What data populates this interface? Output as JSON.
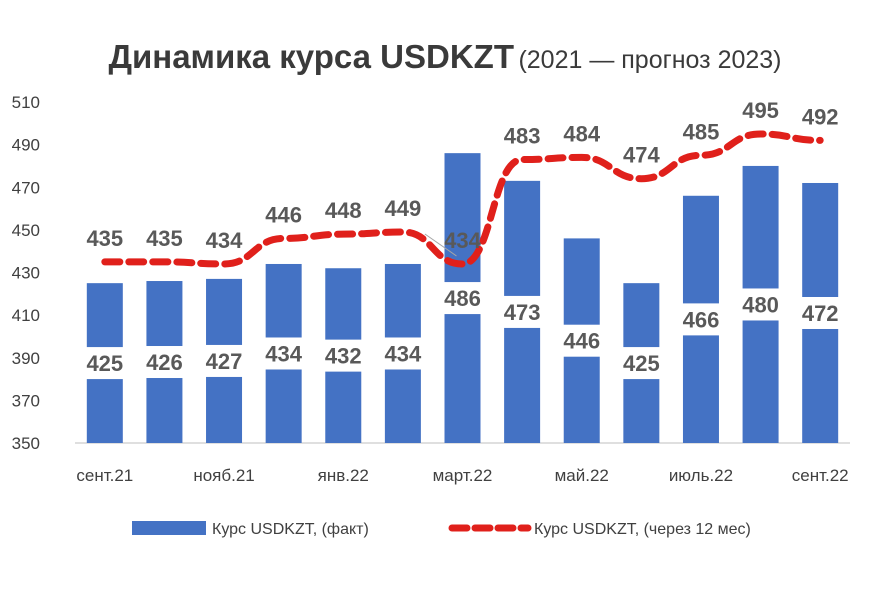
{
  "chart_data": {
    "type": "bar",
    "title": "Динамика курса USDKZT",
    "subtitle": "(2021 — прогноз 2023)",
    "categories": [
      "сент.21",
      "",
      "нояб.21",
      "",
      "янв.22",
      "",
      "март.22",
      "",
      "май.22",
      "",
      "июль.22",
      "",
      "сент.22"
    ],
    "ylim": [
      350,
      510
    ],
    "yticks": [
      350,
      370,
      390,
      410,
      430,
      450,
      470,
      490,
      510
    ],
    "series": [
      {
        "name": "Курс USDKZT, (факт)",
        "type": "bar",
        "color": "#4472C4",
        "values": [
          425,
          426,
          427,
          434,
          432,
          434,
          486,
          473,
          446,
          425,
          466,
          480,
          472
        ]
      },
      {
        "name": "Курс USDKZT, (через 12 мес)",
        "type": "line",
        "style": "dashed",
        "color": "#E0201B",
        "values": [
          435,
          435,
          434,
          446,
          448,
          449,
          434,
          483,
          484,
          474,
          485,
          495,
          492
        ]
      }
    ],
    "legend_position": "bottom",
    "grid": false
  }
}
